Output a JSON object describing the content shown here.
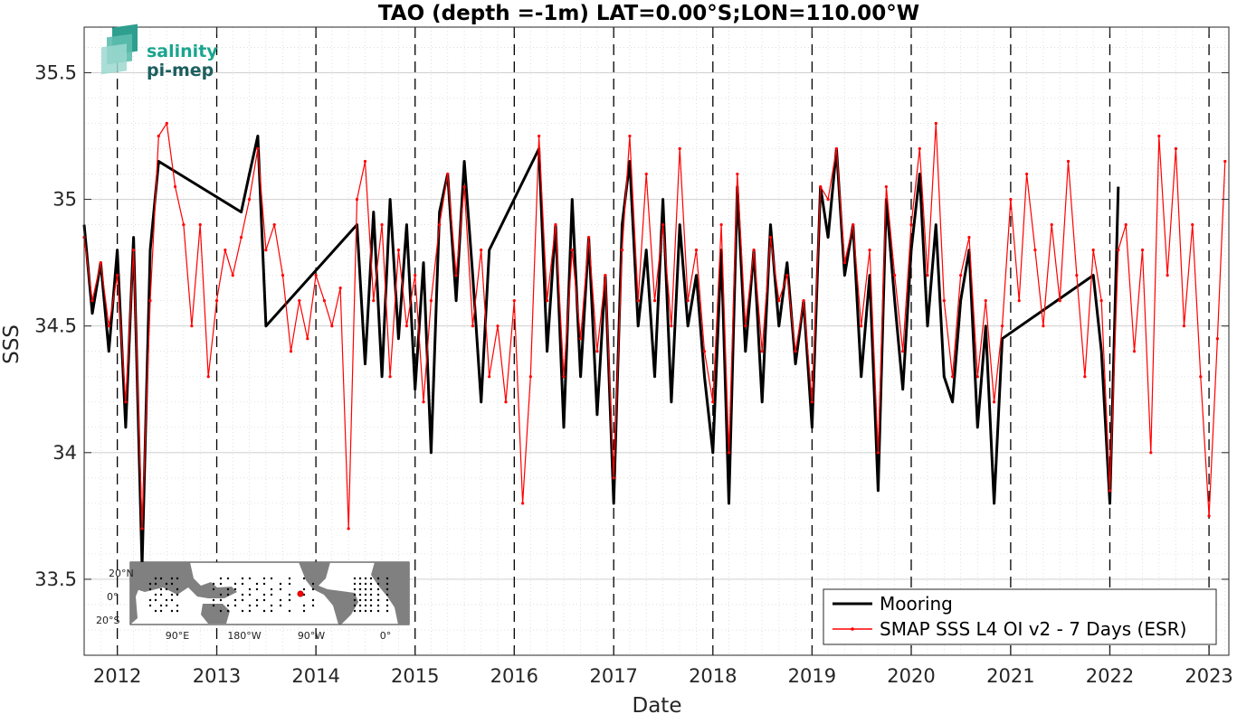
{
  "chart_data": {
    "type": "line",
    "title": "TAO (depth =-1m) LAT=0.00°S;LON=110.00°W",
    "xlabel": "Date",
    "ylabel": "SSS",
    "xlim": [
      "2011-09-01",
      "2023-03-15"
    ],
    "ylim": [
      33.2,
      35.68
    ],
    "xticks": [
      "2012",
      "2013",
      "2014",
      "2015",
      "2016",
      "2017",
      "2018",
      "2019",
      "2020",
      "2021",
      "2022",
      "2023"
    ],
    "yticks": [
      "33.5",
      "34",
      "34.5",
      "35",
      "35.5"
    ],
    "grid": "on",
    "year_boundaries_dashed": true,
    "legend_position": "bottom-right",
    "series": [
      {
        "name": "Mooring",
        "color": "#000000",
        "style": "thick-line",
        "x": [
          "2011-09-01",
          "2011-10-01",
          "2011-11-01",
          "2011-12-01",
          "2012-01-01",
          "2012-02-01",
          "2012-03-01",
          "2012-04-01",
          "2012-05-01",
          "2012-06-01",
          "2013-04-01",
          "2013-05-01",
          "2013-06-01",
          "2013-07-01",
          "2014-06-01",
          "2014-07-01",
          "2014-08-01",
          "2014-09-01",
          "2014-10-01",
          "2014-11-01",
          "2014-12-01",
          "2015-01-01",
          "2015-02-01",
          "2015-03-01",
          "2015-04-01",
          "2015-05-01",
          "2015-06-01",
          "2015-07-01",
          "2015-08-01",
          "2015-09-01",
          "2015-10-01",
          "2016-04-01",
          "2016-05-01",
          "2016-06-01",
          "2016-07-01",
          "2016-08-01",
          "2016-09-01",
          "2016-10-01",
          "2016-11-01",
          "2016-12-01",
          "2017-01-01",
          "2017-02-01",
          "2017-03-01",
          "2017-04-01",
          "2017-05-01",
          "2017-06-01",
          "2017-07-01",
          "2017-08-01",
          "2017-09-01",
          "2017-10-01",
          "2017-11-01",
          "2017-12-01",
          "2018-01-01",
          "2018-02-01",
          "2018-03-01",
          "2018-04-01",
          "2018-05-01",
          "2018-06-01",
          "2018-07-01",
          "2018-08-01",
          "2018-09-01",
          "2018-10-01",
          "2018-11-01",
          "2018-12-01",
          "2019-01-01",
          "2019-02-01",
          "2019-03-01",
          "2019-04-01",
          "2019-05-01",
          "2019-06-01",
          "2019-07-01",
          "2019-08-01",
          "2019-09-01",
          "2019-10-01",
          "2019-11-01",
          "2019-12-01",
          "2020-01-01",
          "2020-02-01",
          "2020-03-01",
          "2020-04-01",
          "2020-05-01",
          "2020-06-01",
          "2020-07-01",
          "2020-08-01",
          "2020-09-01",
          "2020-10-01",
          "2020-11-01",
          "2020-12-01",
          "2021-11-01",
          "2021-12-01",
          "2022-01-01",
          "2022-02-01"
        ],
        "values": [
          34.9,
          34.55,
          34.75,
          34.4,
          34.8,
          34.1,
          34.85,
          33.55,
          34.8,
          35.15,
          34.95,
          35.1,
          35.25,
          34.5,
          34.9,
          34.35,
          34.95,
          34.3,
          35.0,
          34.45,
          34.9,
          34.25,
          34.75,
          34.0,
          34.95,
          35.1,
          34.6,
          35.15,
          34.7,
          34.2,
          34.8,
          35.2,
          34.4,
          34.9,
          34.1,
          35.0,
          34.3,
          34.85,
          34.15,
          34.7,
          33.8,
          34.9,
          35.15,
          34.5,
          34.8,
          34.3,
          35.0,
          34.2,
          34.9,
          34.5,
          34.7,
          34.3,
          34.0,
          34.8,
          33.8,
          35.05,
          34.4,
          34.8,
          34.2,
          34.9,
          34.5,
          34.75,
          34.35,
          34.6,
          34.1,
          35.05,
          34.85,
          35.2,
          34.7,
          34.9,
          34.3,
          34.7,
          33.85,
          35.0,
          34.6,
          34.25,
          34.8,
          35.1,
          34.5,
          34.9,
          34.3,
          34.2,
          34.6,
          34.8,
          34.1,
          34.5,
          33.8,
          34.45,
          34.7,
          34.4,
          33.8,
          35.05
        ]
      },
      {
        "name": "SMAP SSS L4 OI v2 - 7 Days (ESR)",
        "color": "#ff0000",
        "style": "thin-line-with-dots",
        "x": [
          "2011-09-01",
          "2011-10-01",
          "2011-11-01",
          "2011-12-01",
          "2012-01-01",
          "2012-02-01",
          "2012-03-01",
          "2012-04-01",
          "2012-05-01",
          "2012-06-01",
          "2012-07-01",
          "2012-08-01",
          "2012-09-01",
          "2012-10-01",
          "2012-11-01",
          "2012-12-01",
          "2013-01-01",
          "2013-02-01",
          "2013-03-01",
          "2013-04-01",
          "2013-05-01",
          "2013-06-01",
          "2013-07-01",
          "2013-08-01",
          "2013-09-01",
          "2013-10-01",
          "2013-11-01",
          "2013-12-01",
          "2014-01-01",
          "2014-02-01",
          "2014-03-01",
          "2014-04-01",
          "2014-05-01",
          "2014-06-01",
          "2014-07-01",
          "2014-08-01",
          "2014-09-01",
          "2014-10-01",
          "2014-11-01",
          "2014-12-01",
          "2015-01-01",
          "2015-02-01",
          "2015-03-01",
          "2015-04-01",
          "2015-05-01",
          "2015-06-01",
          "2015-07-01",
          "2015-08-01",
          "2015-09-01",
          "2015-10-01",
          "2015-11-01",
          "2015-12-01",
          "2016-01-01",
          "2016-02-01",
          "2016-03-01",
          "2016-04-01",
          "2016-05-01",
          "2016-06-01",
          "2016-07-01",
          "2016-08-01",
          "2016-09-01",
          "2016-10-01",
          "2016-11-01",
          "2016-12-01",
          "2017-01-01",
          "2017-02-01",
          "2017-03-01",
          "2017-04-01",
          "2017-05-01",
          "2017-06-01",
          "2017-07-01",
          "2017-08-01",
          "2017-09-01",
          "2017-10-01",
          "2017-11-01",
          "2017-12-01",
          "2018-01-01",
          "2018-02-01",
          "2018-03-01",
          "2018-04-01",
          "2018-05-01",
          "2018-06-01",
          "2018-07-01",
          "2018-08-01",
          "2018-09-01",
          "2018-10-01",
          "2018-11-01",
          "2018-12-01",
          "2019-01-01",
          "2019-02-01",
          "2019-03-01",
          "2019-04-01",
          "2019-05-01",
          "2019-06-01",
          "2019-07-01",
          "2019-08-01",
          "2019-09-01",
          "2019-10-01",
          "2019-11-01",
          "2019-12-01",
          "2020-01-01",
          "2020-02-01",
          "2020-03-01",
          "2020-04-01",
          "2020-05-01",
          "2020-06-01",
          "2020-07-01",
          "2020-08-01",
          "2020-09-01",
          "2020-10-01",
          "2020-11-01",
          "2020-12-01",
          "2021-01-01",
          "2021-02-01",
          "2021-03-01",
          "2021-04-01",
          "2021-05-01",
          "2021-06-01",
          "2021-07-01",
          "2021-08-01",
          "2021-09-01",
          "2021-10-01",
          "2021-11-01",
          "2021-12-01",
          "2022-01-01",
          "2022-02-01",
          "2022-03-01",
          "2022-04-01",
          "2022-05-01",
          "2022-06-01",
          "2022-07-01",
          "2022-08-01",
          "2022-09-01",
          "2022-10-01",
          "2022-11-01",
          "2022-12-01",
          "2023-01-01",
          "2023-02-01",
          "2023-03-01"
        ],
        "values": [
          34.85,
          34.6,
          34.75,
          34.5,
          34.7,
          34.2,
          34.8,
          33.7,
          34.6,
          35.25,
          35.3,
          35.05,
          34.9,
          34.5,
          34.9,
          34.3,
          34.6,
          34.8,
          34.7,
          34.85,
          35.0,
          35.2,
          34.8,
          34.9,
          34.7,
          34.4,
          34.6,
          34.45,
          34.7,
          34.6,
          34.5,
          34.65,
          33.7,
          35.0,
          35.15,
          34.6,
          34.9,
          34.3,
          34.8,
          34.5,
          34.7,
          34.2,
          34.6,
          34.9,
          35.1,
          34.7,
          35.05,
          34.5,
          34.8,
          34.3,
          34.5,
          34.2,
          34.6,
          33.8,
          34.3,
          35.25,
          34.6,
          34.9,
          34.3,
          34.8,
          34.45,
          34.85,
          34.4,
          34.7,
          33.9,
          34.8,
          35.25,
          34.6,
          35.1,
          34.6,
          34.9,
          34.5,
          35.2,
          34.6,
          34.8,
          34.4,
          34.2,
          34.9,
          34.0,
          35.1,
          34.5,
          34.8,
          34.4,
          34.85,
          34.6,
          34.7,
          34.4,
          34.6,
          34.2,
          35.05,
          35.0,
          35.2,
          34.75,
          34.9,
          34.5,
          34.8,
          34.0,
          35.05,
          34.7,
          34.4,
          34.9,
          35.2,
          34.7,
          35.3,
          34.6,
          34.3,
          34.7,
          34.85,
          34.3,
          34.6,
          34.2,
          34.5,
          35.0,
          34.6,
          35.1,
          34.8,
          34.5,
          34.9,
          34.6,
          35.15,
          34.7,
          34.3,
          34.8,
          34.6,
          33.85,
          34.8,
          34.9,
          34.4,
          34.8,
          34.0,
          35.25,
          34.7,
          35.2,
          34.5,
          34.9,
          34.3,
          33.75,
          34.45,
          35.15
        ]
      }
    ]
  },
  "logo": {
    "word1": "salinity",
    "word2": "pi-mep"
  },
  "inset_map": {
    "lat_labels": [
      "20°N",
      "0°",
      "20°S"
    ],
    "lon_labels": [
      "90°E",
      "180°W",
      "90°W",
      "0°"
    ],
    "marker_color": "#ff0000",
    "land_color": "#808080"
  }
}
